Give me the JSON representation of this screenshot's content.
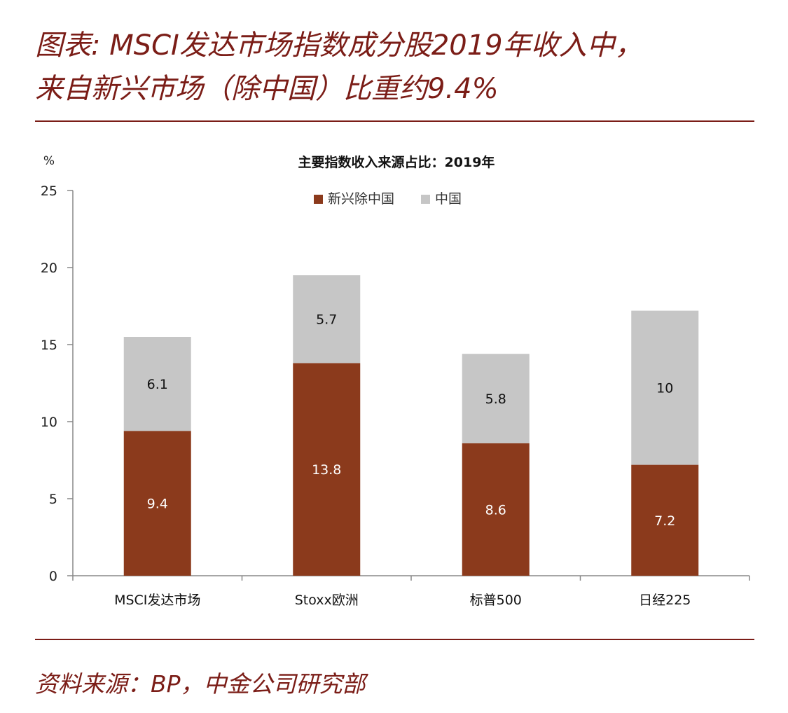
{
  "figure": {
    "title_line1": "图表: MSCI发达市场指数成分股2019年收入中，",
    "title_line2": "来自新兴市场（除中国）比重约9.4%",
    "source": "资料来源：BP，中金公司研究部"
  },
  "colors": {
    "accent": "#7b1d17",
    "series_em": "#8b3a1c",
    "series_china": "#c6c6c6"
  },
  "chart_data": {
    "type": "bar",
    "stacked": true,
    "title": "主要指数收入来源占比：2019年",
    "unit_label": "%",
    "xlabel": "",
    "ylabel": "",
    "categories": [
      "MSCI发达市场",
      "Stoxx欧洲",
      "标普500",
      "日经225"
    ],
    "series": [
      {
        "name": "新兴除中国",
        "values": [
          9.4,
          13.8,
          8.6,
          7.2
        ],
        "color": "#8b3a1c",
        "labels": [
          "9.4",
          "13.8",
          "8.6",
          "7.2"
        ]
      },
      {
        "name": "中国",
        "values": [
          6.1,
          5.7,
          5.8,
          10
        ],
        "color": "#c6c6c6",
        "labels": [
          "6.1",
          "5.7",
          "5.8",
          "10"
        ]
      }
    ],
    "ylim": [
      0,
      25
    ],
    "yticks": [
      0,
      5,
      10,
      15,
      20,
      25
    ],
    "legend_position": "top-center",
    "grid": false
  }
}
